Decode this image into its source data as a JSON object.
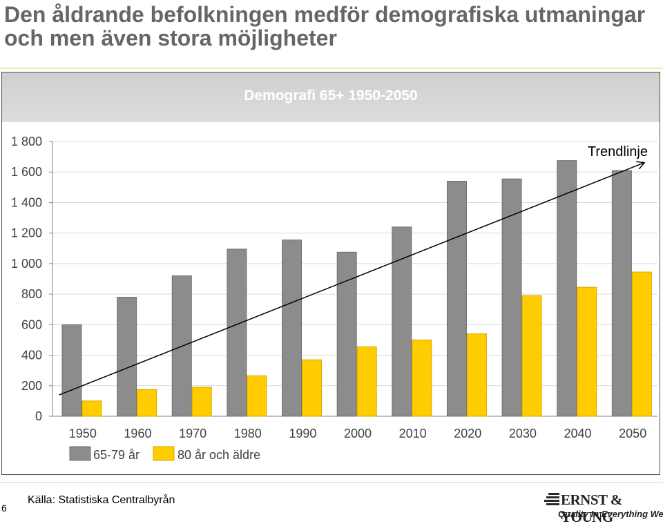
{
  "slide": {
    "title": "Den åldrande befolkningen medför demografiska utmaningar och men även stora möjligheter",
    "page_number": "6",
    "source": "Källa: Statistiska Centralbyrån",
    "logo": {
      "name": "ERNST & YOUNG",
      "tagline": "Quality In Everything We Do"
    }
  },
  "colors": {
    "series_65_79": "#8c8c8c",
    "series_80_plus": "#ffcc00",
    "title_text": "#666666",
    "header_band": "#d4d4d4"
  },
  "chart_data": {
    "type": "bar",
    "title": "Demografi 65+ 1950-2050",
    "xlabel": "",
    "ylabel": "",
    "categories": [
      "1950",
      "1960",
      "1970",
      "1980",
      "1990",
      "2000",
      "2010",
      "2020",
      "2030",
      "2040",
      "2050"
    ],
    "ylim": [
      0,
      1800
    ],
    "yticks": [
      0,
      200,
      400,
      600,
      800,
      1000,
      1200,
      1400,
      1600,
      1800
    ],
    "ytick_labels": [
      "0",
      "200",
      "400",
      "600",
      "800",
      "1 000",
      "1 200",
      "1 400",
      "1 600",
      "1 800"
    ],
    "grid": true,
    "legend_position": "bottom-left",
    "series": [
      {
        "name": "65-79 år",
        "values": [
          600,
          780,
          920,
          1095,
          1155,
          1075,
          1240,
          1540,
          1555,
          1675,
          1610
        ]
      },
      {
        "name": "80 år och äldre",
        "values": [
          100,
          175,
          190,
          265,
          370,
          455,
          500,
          540,
          790,
          845,
          945
        ]
      }
    ],
    "annotation": {
      "label": "Trendlinje",
      "arrow_start": {
        "x": "1950",
        "y": 140
      },
      "arrow_end": {
        "x": "2050",
        "y": 1660
      }
    }
  }
}
